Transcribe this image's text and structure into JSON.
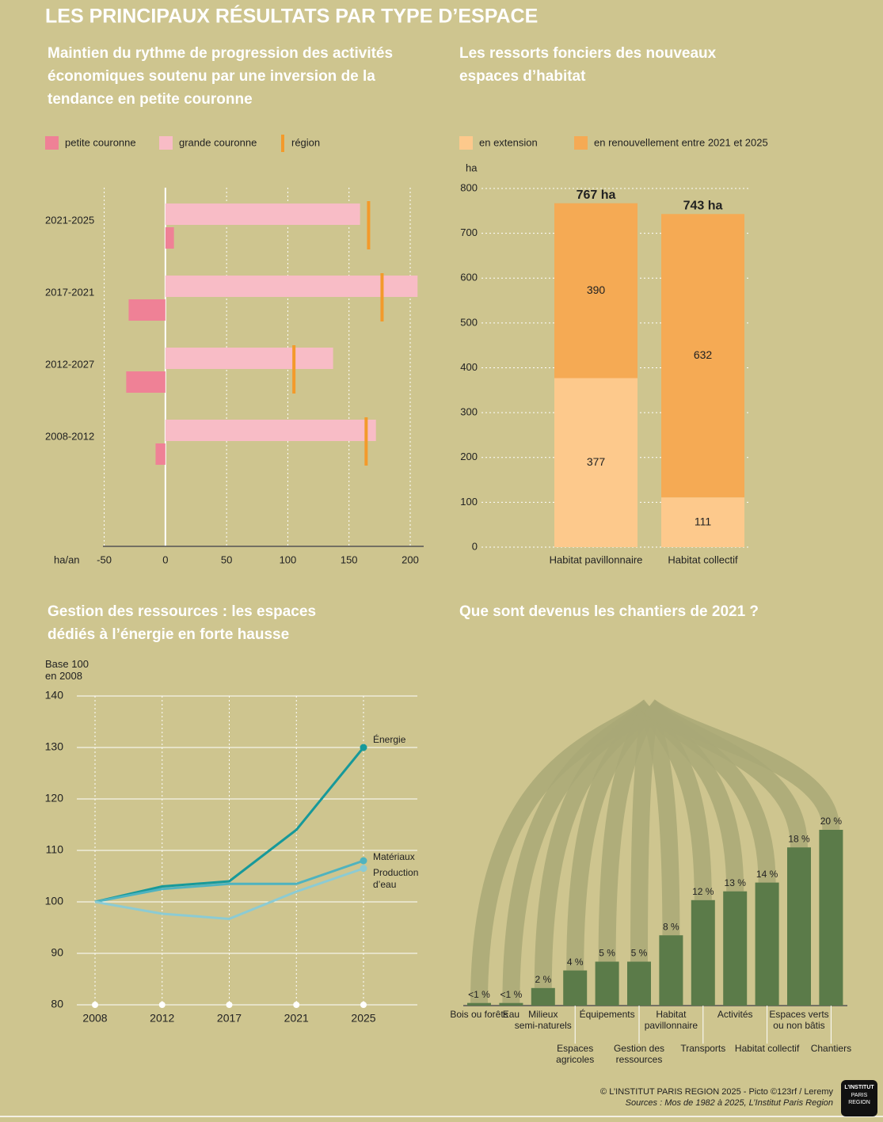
{
  "title": "LES PRINCIPAUX RÉSULTATS PAR TYPE D’ESPACE",
  "chart_data": [
    {
      "type": "hbar",
      "title": "Maintien du rythme de progression des activités économiques soutenu par une inversion de la tendance en petite couronne",
      "categories": [
        "2021-2025",
        "2017-2021",
        "2012-2027",
        "2008-2012"
      ],
      "series": [
        {
          "name": "petite couronne",
          "color": "#ef8196",
          "values": [
            7,
            -30,
            -32,
            -8
          ]
        },
        {
          "name": "grande couronne",
          "color": "#f8bcc6",
          "values": [
            159,
            206,
            137,
            172
          ]
        },
        {
          "name": "région",
          "color": "#f39a2b",
          "marker": "tick",
          "values": [
            166,
            177,
            105,
            164
          ]
        }
      ],
      "xlabel": "ha/an",
      "xlim": [
        -51,
        211
      ],
      "xticks": [
        -50,
        0,
        50,
        100,
        150,
        200
      ],
      "grid": true
    },
    {
      "type": "stacked-bar",
      "title": "Les ressorts fonciers des nouveaux espaces d’habitat",
      "categories": [
        "Habitat pavillonnaire",
        "Habitat collectif"
      ],
      "series": [
        {
          "name": "en extension",
          "color": "#fdc98c",
          "values": [
            377,
            111
          ]
        },
        {
          "name": "en renouvellement entre 2021 et 2025",
          "color": "#f5aa54",
          "values": [
            390,
            632
          ]
        }
      ],
      "totals": [
        767,
        743
      ],
      "total_labels": [
        "767 ha",
        "743 ha"
      ],
      "ylabel": "ha",
      "ylim": [
        0,
        800
      ],
      "yticks": [
        0,
        100,
        200,
        300,
        400,
        500,
        600,
        700,
        800
      ],
      "grid": true
    },
    {
      "type": "line",
      "title": "Gestion des ressources : les espaces dédiés à l’énergie en forte hausse",
      "ylabel": "Base 100 en 2008",
      "categories": [
        "2008",
        "2012",
        "2017",
        "2021",
        "2025"
      ],
      "series": [
        {
          "name": "Énergie",
          "color": "#17999a",
          "values": [
            100,
            103,
            104,
            114,
            130
          ]
        },
        {
          "name": "Matériaux",
          "color": "#4fb3bf",
          "values": [
            100,
            102.5,
            103.5,
            103.5,
            108
          ]
        },
        {
          "name": "Production d’eau",
          "color": "#8ccbd3",
          "values": [
            100,
            97.7,
            96.7,
            102,
            106.5
          ]
        }
      ],
      "ylim": [
        80,
        140
      ],
      "yticks": [
        80,
        90,
        100,
        110,
        120,
        130,
        140
      ],
      "grid": true
    },
    {
      "type": "flow-bar",
      "title": "Que sont devenus les chantiers de 2021 ?",
      "categories": [
        "Bois ou forêts",
        "Eau",
        "Milieux semi-naturels",
        "Espaces agricoles",
        "Équipements",
        "Gestion des ressources",
        "Habitat pavillonnaire",
        "Transports",
        "Activités",
        "Habitat collectif",
        "Espaces verts ou non bâtis",
        "Chantiers"
      ],
      "values": [
        0.3,
        0.3,
        2,
        4,
        5,
        5,
        8,
        12,
        13,
        14,
        18,
        20
      ],
      "value_labels": [
        "<1 %",
        "<1 %",
        "2 %",
        "4 %",
        "5 %",
        "5 %",
        "8 %",
        "12 %",
        "13 %",
        "14 %",
        "18 %",
        "20 %"
      ],
      "color": "#5b7b49"
    }
  ],
  "footer": {
    "credit": "© L’INSTITUT PARIS REGION 2025 - Picto ©123rf / Leremy",
    "sources": "Sources : Mos de 1982 à 2025, L’Institut Paris Region"
  },
  "logo": [
    "L’INSTITUT",
    "PARIS",
    "REGION"
  ]
}
